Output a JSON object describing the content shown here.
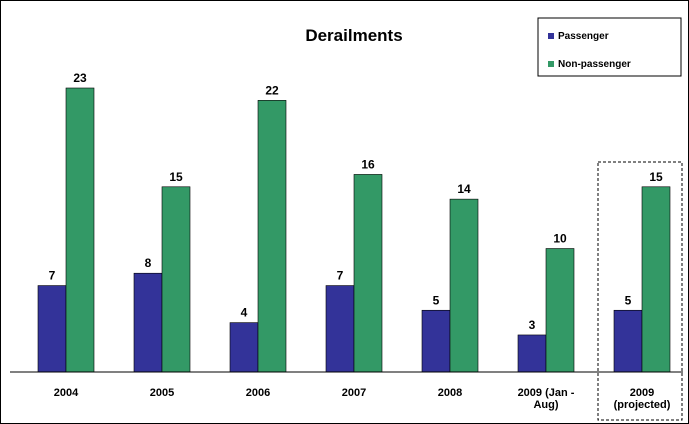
{
  "chart_data": {
    "type": "bar",
    "title": "Derailments",
    "categories": [
      "2004",
      "2005",
      "2006",
      "2007",
      "2008",
      "2009 (Jan - Aug)",
      "2009 (projected)"
    ],
    "category_lines": [
      [
        "2004"
      ],
      [
        "2005"
      ],
      [
        "2006"
      ],
      [
        "2007"
      ],
      [
        "2008"
      ],
      [
        "2009 (Jan -",
        "Aug)"
      ],
      [
        "2009",
        "(projected)"
      ]
    ],
    "series": [
      {
        "name": "Passenger",
        "values": [
          7,
          8,
          4,
          7,
          5,
          3,
          5
        ],
        "color": "#333399"
      },
      {
        "name": "Non-passenger",
        "values": [
          23,
          15,
          22,
          16,
          14,
          10,
          15
        ],
        "color": "#339966"
      }
    ],
    "ylim": [
      0,
      25
    ],
    "grid": false,
    "legend_position": "top-right",
    "highlighted_category": "2009 (projected)",
    "xlabel": "",
    "ylabel": ""
  }
}
